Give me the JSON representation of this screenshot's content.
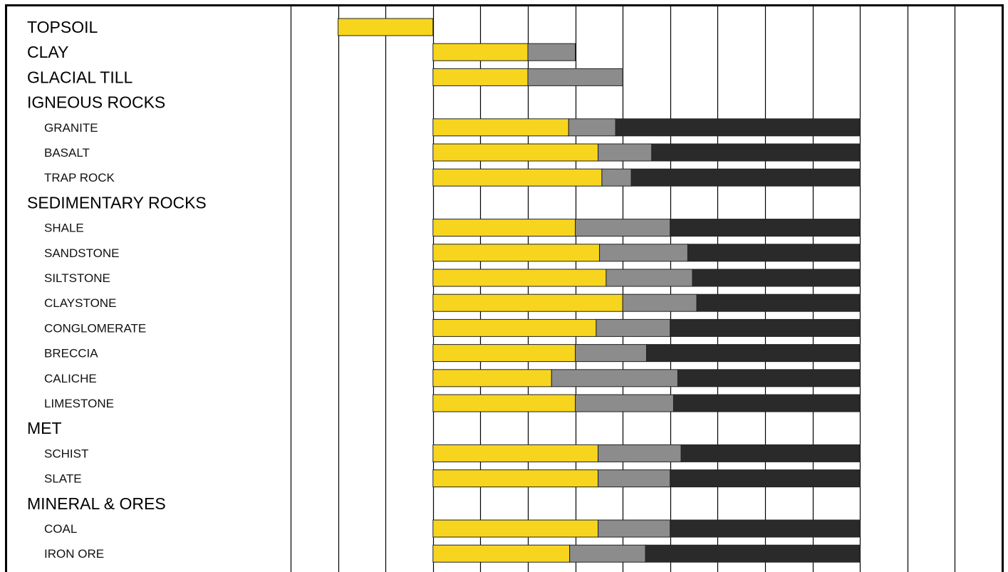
{
  "chart_data": {
    "type": "bar",
    "orientation": "horizontal",
    "stacked": true,
    "floating": true,
    "title": "",
    "xlabel": "",
    "ylabel": "",
    "x_range": [
      0,
      15
    ],
    "grid": true,
    "legend": "none",
    "colors": {
      "yellow": "#f7d51e",
      "gray": "#8c8c8c",
      "dark": "#2a2a2a",
      "grid": "#000000"
    },
    "rows": [
      {
        "label": "TOPSOIL",
        "level": "heading",
        "segments": [
          {
            "color": "yellow",
            "start": 1,
            "end": 3
          }
        ]
      },
      {
        "label": "CLAY",
        "level": "heading",
        "segments": [
          {
            "color": "yellow",
            "start": 3,
            "end": 5
          },
          {
            "color": "gray",
            "start": 5,
            "end": 6
          }
        ]
      },
      {
        "label": "GLACIAL TILL",
        "level": "heading",
        "segments": [
          {
            "color": "yellow",
            "start": 3,
            "end": 5
          },
          {
            "color": "gray",
            "start": 5,
            "end": 7
          }
        ]
      },
      {
        "label": "IGNEOUS ROCKS",
        "level": "heading",
        "segments": []
      },
      {
        "label": "GRANITE",
        "level": "sub",
        "segments": [
          {
            "color": "yellow",
            "start": 3,
            "end": 5.86
          },
          {
            "color": "gray",
            "start": 5.86,
            "end": 6.85
          },
          {
            "color": "dark",
            "start": 6.85,
            "end": 12
          }
        ]
      },
      {
        "label": "BASALT",
        "level": "sub",
        "segments": [
          {
            "color": "yellow",
            "start": 3,
            "end": 6.48
          },
          {
            "color": "gray",
            "start": 6.48,
            "end": 7.61
          },
          {
            "color": "dark",
            "start": 7.61,
            "end": 12
          }
        ]
      },
      {
        "label": "TRAP ROCK",
        "level": "sub",
        "segments": [
          {
            "color": "yellow",
            "start": 3,
            "end": 6.56
          },
          {
            "color": "gray",
            "start": 6.56,
            "end": 7.18
          },
          {
            "color": "dark",
            "start": 7.18,
            "end": 12
          }
        ]
      },
      {
        "label": "SEDIMENTARY ROCKS",
        "level": "heading",
        "segments": []
      },
      {
        "label": "SHALE",
        "level": "sub",
        "segments": [
          {
            "color": "yellow",
            "start": 3,
            "end": 6
          },
          {
            "color": "gray",
            "start": 6,
            "end": 8
          },
          {
            "color": "dark",
            "start": 8,
            "end": 12
          }
        ]
      },
      {
        "label": "SANDSTONE",
        "level": "sub",
        "segments": [
          {
            "color": "yellow",
            "start": 3,
            "end": 6.51
          },
          {
            "color": "gray",
            "start": 6.51,
            "end": 8.37
          },
          {
            "color": "dark",
            "start": 8.37,
            "end": 12
          }
        ]
      },
      {
        "label": "SILTSTONE",
        "level": "sub",
        "segments": [
          {
            "color": "yellow",
            "start": 3,
            "end": 6.65
          },
          {
            "color": "gray",
            "start": 6.65,
            "end": 8.47
          },
          {
            "color": "dark",
            "start": 8.47,
            "end": 12
          }
        ]
      },
      {
        "label": "CLAYSTONE",
        "level": "sub",
        "segments": [
          {
            "color": "yellow",
            "start": 3,
            "end": 7
          },
          {
            "color": "gray",
            "start": 7,
            "end": 8.56
          },
          {
            "color": "dark",
            "start": 8.56,
            "end": 12
          }
        ]
      },
      {
        "label": "CONGLOMERATE",
        "level": "sub",
        "segments": [
          {
            "color": "yellow",
            "start": 3,
            "end": 6.44
          },
          {
            "color": "gray",
            "start": 6.44,
            "end": 8
          },
          {
            "color": "dark",
            "start": 8,
            "end": 12
          }
        ]
      },
      {
        "label": "BRECCIA",
        "level": "sub",
        "segments": [
          {
            "color": "yellow",
            "start": 3,
            "end": 6
          },
          {
            "color": "gray",
            "start": 6,
            "end": 7.5
          },
          {
            "color": "dark",
            "start": 7.5,
            "end": 12
          }
        ]
      },
      {
        "label": "CALICHE",
        "level": "sub",
        "segments": [
          {
            "color": "yellow",
            "start": 3,
            "end": 5.5
          },
          {
            "color": "gray",
            "start": 5.5,
            "end": 8.16
          },
          {
            "color": "dark",
            "start": 8.16,
            "end": 12
          }
        ]
      },
      {
        "label": "LIMESTONE",
        "level": "sub",
        "segments": [
          {
            "color": "yellow",
            "start": 3,
            "end": 6
          },
          {
            "color": "gray",
            "start": 6,
            "end": 8.07
          },
          {
            "color": "dark",
            "start": 8.07,
            "end": 12
          }
        ]
      },
      {
        "label": "MET",
        "level": "heading",
        "segments": []
      },
      {
        "label": "SCHIST",
        "level": "sub",
        "segments": [
          {
            "color": "yellow",
            "start": 3,
            "end": 6.48
          },
          {
            "color": "gray",
            "start": 6.48,
            "end": 8.23
          },
          {
            "color": "dark",
            "start": 8.23,
            "end": 12
          }
        ]
      },
      {
        "label": "SLATE",
        "level": "sub",
        "segments": [
          {
            "color": "yellow",
            "start": 3,
            "end": 6.48
          },
          {
            "color": "gray",
            "start": 6.48,
            "end": 8
          },
          {
            "color": "dark",
            "start": 8,
            "end": 12
          }
        ]
      },
      {
        "label": "MINERAL & ORES",
        "level": "heading",
        "segments": []
      },
      {
        "label": "COAL",
        "level": "sub",
        "segments": [
          {
            "color": "yellow",
            "start": 3,
            "end": 6.48
          },
          {
            "color": "gray",
            "start": 6.48,
            "end": 8
          },
          {
            "color": "dark",
            "start": 8,
            "end": 12
          }
        ]
      },
      {
        "label": "IRON ORE",
        "level": "sub",
        "segments": [
          {
            "color": "yellow",
            "start": 3,
            "end": 5.88
          },
          {
            "color": "gray",
            "start": 5.88,
            "end": 7.48
          },
          {
            "color": "dark",
            "start": 7.48,
            "end": 12
          }
        ]
      }
    ]
  }
}
